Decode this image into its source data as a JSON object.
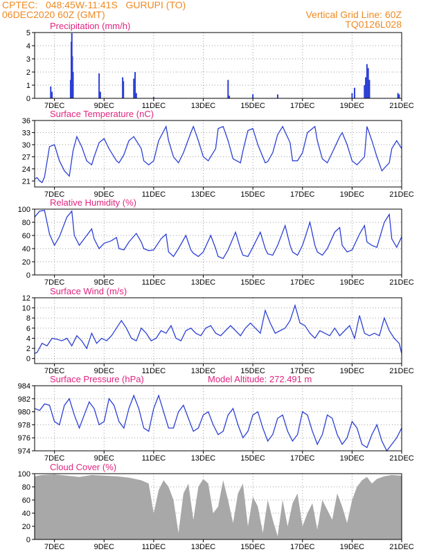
{
  "header": {
    "line1": "CPTEC:   048:45W-11:41S   GURUPI (TO)",
    "line2": "06DEC2020 60Z (GMT)",
    "right1": "Vertical Grid Line: 60Z",
    "right2": "TQ0126L028"
  },
  "colors": {
    "header": "#ee8a22",
    "title": "#e0247e",
    "line": "#2b3fd4",
    "bar": "#2b3fd4",
    "cloud": "#a8a8a8",
    "grid": "#9a9a9a"
  },
  "x_ticks": [
    {
      "day": 7,
      "label": "7DEC"
    },
    {
      "day": 9,
      "label": "9DEC"
    },
    {
      "day": 11,
      "label": "11DEC"
    },
    {
      "day": 13,
      "label": "13DEC"
    },
    {
      "day": 15,
      "label": "15DEC"
    },
    {
      "day": 17,
      "label": "17DEC"
    },
    {
      "day": 19,
      "label": "19DEC"
    },
    {
      "day": 21,
      "label": "21DEC"
    }
  ],
  "chart_data": [
    {
      "type": "bar",
      "title": "Precipitation (mm/h)",
      "xlim": [
        6.2,
        21
      ],
      "ylim": [
        0,
        5
      ],
      "yticks": [
        0,
        1,
        2,
        3,
        4,
        5
      ],
      "grid": true,
      "x": [
        6.85,
        6.9,
        7.65,
        7.68,
        7.7,
        7.72,
        7.75,
        8.8,
        8.85,
        9.75,
        9.78,
        10.2,
        10.25,
        10.3,
        11.0,
        14.0,
        14.05,
        15.0,
        16.0,
        19.0,
        19.1,
        19.5,
        19.55,
        19.6,
        19.65,
        19.7,
        20.85,
        20.9
      ],
      "values": [
        0.9,
        0.5,
        1.4,
        4.3,
        4.95,
        3.2,
        2.0,
        1.9,
        0.5,
        1.6,
        1.3,
        1.5,
        2.0,
        0.4,
        0.1,
        1.4,
        0.2,
        0.3,
        0.3,
        0.4,
        0.8,
        1.0,
        1.6,
        2.6,
        2.3,
        1.4,
        0.4,
        0.3
      ]
    },
    {
      "type": "line",
      "title": "Surface Temperature (nC)",
      "xlim": [
        6.2,
        21
      ],
      "ylim": [
        19.5,
        36
      ],
      "yticks": [
        21,
        24,
        27,
        30,
        33,
        36
      ],
      "grid": true,
      "x": [
        6.2,
        6.3,
        6.4,
        6.5,
        6.6,
        6.8,
        7.0,
        7.2,
        7.4,
        7.6,
        7.75,
        7.9,
        8.1,
        8.3,
        8.5,
        8.6,
        8.8,
        9.0,
        9.2,
        9.5,
        9.6,
        9.8,
        10.0,
        10.2,
        10.5,
        10.6,
        10.8,
        11.0,
        11.2,
        11.5,
        11.6,
        11.8,
        12.0,
        12.2,
        12.5,
        12.6,
        12.8,
        13.0,
        13.2,
        13.5,
        13.6,
        13.8,
        14.0,
        14.2,
        14.5,
        14.6,
        14.8,
        15.0,
        15.2,
        15.5,
        15.6,
        15.8,
        16.0,
        16.2,
        16.5,
        16.6,
        16.8,
        17.0,
        17.2,
        17.5,
        17.6,
        17.8,
        18.0,
        18.2,
        18.5,
        18.6,
        18.8,
        19.0,
        19.2,
        19.5,
        19.6,
        19.8,
        20.0,
        20.2,
        20.5,
        20.6,
        20.8,
        21.0
      ],
      "values": [
        21.5,
        21.8,
        21.0,
        20.6,
        22.0,
        29.5,
        30.0,
        26.0,
        23.5,
        22.2,
        28.5,
        32.0,
        29.5,
        26.0,
        25.0,
        27.0,
        30.5,
        31.5,
        29.0,
        26.0,
        25.5,
        27.5,
        31.0,
        32.0,
        29.0,
        26.0,
        25.0,
        26.0,
        31.0,
        34.5,
        31.0,
        27.0,
        25.5,
        28.0,
        33.0,
        34.5,
        31.0,
        27.0,
        26.0,
        29.0,
        34.0,
        34.5,
        31.0,
        26.5,
        25.5,
        28.5,
        33.5,
        34.0,
        30.0,
        25.5,
        25.8,
        28.0,
        32.5,
        34.5,
        30.5,
        26.0,
        26.0,
        28.0,
        33.0,
        34.5,
        31.0,
        26.5,
        25.5,
        28.0,
        32.0,
        33.0,
        30.0,
        26.0,
        25.0,
        27.0,
        34.5,
        31.0,
        27.0,
        23.5,
        25.5,
        29.0,
        31.0,
        29.0
      ]
    },
    {
      "type": "line",
      "title": "Relative Humidity (%)",
      "xlim": [
        6.2,
        21
      ],
      "ylim": [
        0,
        100
      ],
      "yticks": [
        0,
        20,
        40,
        60,
        80,
        100
      ],
      "grid": true,
      "x": [
        6.2,
        6.4,
        6.6,
        6.8,
        7.0,
        7.2,
        7.5,
        7.7,
        7.8,
        8.0,
        8.3,
        8.5,
        8.6,
        8.8,
        9.0,
        9.3,
        9.5,
        9.6,
        9.8,
        10.0,
        10.3,
        10.5,
        10.6,
        10.8,
        11.0,
        11.3,
        11.5,
        11.6,
        11.8,
        12.0,
        12.3,
        12.5,
        12.6,
        12.8,
        13.0,
        13.3,
        13.5,
        13.6,
        13.8,
        14.0,
        14.3,
        14.5,
        14.6,
        14.8,
        15.0,
        15.3,
        15.5,
        15.6,
        15.8,
        16.0,
        16.3,
        16.5,
        16.6,
        16.8,
        17.0,
        17.3,
        17.5,
        17.6,
        17.8,
        18.0,
        18.3,
        18.5,
        18.6,
        18.8,
        19.0,
        19.3,
        19.5,
        19.6,
        19.8,
        20.0,
        20.3,
        20.5,
        20.6,
        20.8,
        21.0
      ],
      "values": [
        88,
        97,
        98,
        62,
        45,
        58,
        88,
        97,
        60,
        45,
        60,
        70,
        55,
        40,
        48,
        52,
        57,
        40,
        38,
        50,
        63,
        50,
        40,
        37,
        38,
        55,
        62,
        35,
        28,
        40,
        60,
        38,
        33,
        28,
        35,
        60,
        40,
        28,
        25,
        38,
        65,
        40,
        30,
        28,
        42,
        65,
        40,
        32,
        30,
        45,
        75,
        45,
        35,
        30,
        45,
        80,
        45,
        35,
        30,
        40,
        65,
        72,
        45,
        35,
        38,
        62,
        75,
        50,
        45,
        42,
        80,
        92,
        55,
        42,
        58
      ]
    },
    {
      "type": "line",
      "title": "Surface Wind (m/s)",
      "xlim": [
        6.2,
        21
      ],
      "ylim": [
        -1,
        12
      ],
      "yticks": [
        0,
        2,
        4,
        6,
        8,
        10,
        12
      ],
      "grid": true,
      "x": [
        6.2,
        6.3,
        6.5,
        6.7,
        6.9,
        7.1,
        7.3,
        7.5,
        7.7,
        7.9,
        8.1,
        8.3,
        8.5,
        8.7,
        8.9,
        9.1,
        9.3,
        9.5,
        9.7,
        9.9,
        10.1,
        10.3,
        10.5,
        10.7,
        10.9,
        11.1,
        11.3,
        11.5,
        11.7,
        11.9,
        12.1,
        12.3,
        12.5,
        12.7,
        12.9,
        13.1,
        13.3,
        13.5,
        13.7,
        13.9,
        14.1,
        14.3,
        14.5,
        14.7,
        14.9,
        15.1,
        15.3,
        15.5,
        15.7,
        15.9,
        16.1,
        16.3,
        16.5,
        16.7,
        16.9,
        17.1,
        17.3,
        17.5,
        17.7,
        17.9,
        18.1,
        18.3,
        18.5,
        18.7,
        18.9,
        19.1,
        19.3,
        19.5,
        19.7,
        19.9,
        20.1,
        20.3,
        20.5,
        20.7,
        20.9,
        21.0
      ],
      "values": [
        1.0,
        1.2,
        3.0,
        2.5,
        4.0,
        3.8,
        3.5,
        4.0,
        2.5,
        4.5,
        3.5,
        2.0,
        5.0,
        3.0,
        4.0,
        3.5,
        4.5,
        6.0,
        7.5,
        6.0,
        4.0,
        3.5,
        6.0,
        5.0,
        3.5,
        4.0,
        5.5,
        5.0,
        6.5,
        4.0,
        3.5,
        5.5,
        6.0,
        5.0,
        4.5,
        6.0,
        6.5,
        5.0,
        4.5,
        5.5,
        6.5,
        5.5,
        4.5,
        6.0,
        7.0,
        6.0,
        5.0,
        9.5,
        7.0,
        5.0,
        5.5,
        6.0,
        7.5,
        10.5,
        7.0,
        6.5,
        5.0,
        4.0,
        5.5,
        5.0,
        4.5,
        6.0,
        4.5,
        5.5,
        6.5,
        4.0,
        8.5,
        5.0,
        4.5,
        5.0,
        4.5,
        8.0,
        5.5,
        4.0,
        3.0,
        1.0
      ]
    },
    {
      "type": "line",
      "title": "Surface Pressure (hPa)",
      "annotation": "Model Altitude: 272.491  m",
      "xlim": [
        6.2,
        21
      ],
      "ylim": [
        974,
        984
      ],
      "yticks": [
        974,
        976,
        978,
        980,
        982,
        984
      ],
      "grid": true,
      "x": [
        6.2,
        6.4,
        6.6,
        6.8,
        7.0,
        7.2,
        7.4,
        7.6,
        7.8,
        8.0,
        8.2,
        8.4,
        8.6,
        8.8,
        9.0,
        9.2,
        9.4,
        9.6,
        9.8,
        10.0,
        10.2,
        10.4,
        10.6,
        10.8,
        11.0,
        11.2,
        11.4,
        11.6,
        11.8,
        12.0,
        12.2,
        12.4,
        12.6,
        12.8,
        13.0,
        13.2,
        13.4,
        13.6,
        13.8,
        14.0,
        14.2,
        14.4,
        14.6,
        14.8,
        15.0,
        15.2,
        15.4,
        15.6,
        15.8,
        16.0,
        16.2,
        16.4,
        16.6,
        16.8,
        17.0,
        17.2,
        17.4,
        17.6,
        17.8,
        18.0,
        18.2,
        18.4,
        18.6,
        18.8,
        19.0,
        19.2,
        19.4,
        19.6,
        19.8,
        20.0,
        20.2,
        20.4,
        20.6,
        20.8,
        21.0
      ],
      "values": [
        980.5,
        980.2,
        981.2,
        981.0,
        978.5,
        978.0,
        981.0,
        982.0,
        979.5,
        977.5,
        979.5,
        981.5,
        980.5,
        978.0,
        978.5,
        982.0,
        981.0,
        978.5,
        977.5,
        980.5,
        982.5,
        980.5,
        977.5,
        977.0,
        980.5,
        982.5,
        980.0,
        977.5,
        977.5,
        980.0,
        981.0,
        979.0,
        977.0,
        977.5,
        979.5,
        980.0,
        978.0,
        976.5,
        977.0,
        979.5,
        980.5,
        978.0,
        976.0,
        977.0,
        979.5,
        980.0,
        977.5,
        975.5,
        976.5,
        979.0,
        979.5,
        977.0,
        975.5,
        976.5,
        980.0,
        979.5,
        977.0,
        975.0,
        976.5,
        979.5,
        979.0,
        976.5,
        975.0,
        976.0,
        978.5,
        977.5,
        975.0,
        974.5,
        976.5,
        978.0,
        975.5,
        974.0,
        975.0,
        976.0,
        977.5
      ]
    },
    {
      "type": "area",
      "title": "Cloud Cover (%)",
      "xlim": [
        6.2,
        21
      ],
      "ylim": [
        0,
        100
      ],
      "yticks": [
        0,
        20,
        40,
        60,
        80,
        100
      ],
      "grid": true,
      "x": [
        6.2,
        6.5,
        7.0,
        7.5,
        8.0,
        8.5,
        9.0,
        9.5,
        10.0,
        10.5,
        10.8,
        11.0,
        11.2,
        11.4,
        11.6,
        11.8,
        12.0,
        12.2,
        12.4,
        12.6,
        12.8,
        13.0,
        13.2,
        13.4,
        13.6,
        13.8,
        14.0,
        14.2,
        14.4,
        14.6,
        14.8,
        15.0,
        15.2,
        15.4,
        15.6,
        15.8,
        16.0,
        16.2,
        16.4,
        16.6,
        16.8,
        17.0,
        17.2,
        17.4,
        17.6,
        17.8,
        18.0,
        18.2,
        18.4,
        18.6,
        18.8,
        19.0,
        19.2,
        19.4,
        19.6,
        19.8,
        20.0,
        20.3,
        20.6,
        21.0
      ],
      "values": [
        96,
        98,
        99,
        97,
        95,
        98,
        97,
        96,
        94,
        90,
        85,
        40,
        75,
        90,
        80,
        60,
        10,
        70,
        85,
        30,
        80,
        92,
        85,
        40,
        50,
        90,
        60,
        25,
        70,
        85,
        20,
        65,
        50,
        10,
        60,
        30,
        5,
        60,
        20,
        55,
        70,
        20,
        40,
        55,
        15,
        60,
        45,
        30,
        70,
        50,
        25,
        60,
        80,
        90,
        95,
        85,
        92,
        96,
        98,
        97
      ]
    }
  ]
}
